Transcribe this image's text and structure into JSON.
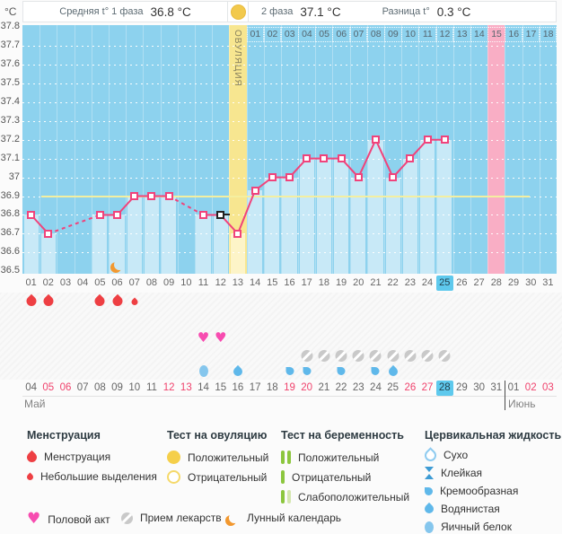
{
  "header": {
    "unit": "°C",
    "avg_phase1_label": "Средняя t° 1 фаза",
    "avg_phase1_value": "36.8 °C",
    "phase2_label": "2 фаза",
    "phase2_value": "37.1 °C",
    "diff_label": "Разница t°",
    "diff_value": "0.3 °C"
  },
  "chart_data": {
    "type": "line",
    "title": "Basal body temperature cycle chart",
    "ylabel": "°C",
    "ylim": [
      36.5,
      37.8
    ],
    "ytick_labels": [
      "37.8",
      "37.7",
      "37.6",
      "37.5",
      "37.4",
      "37.3",
      "37.2",
      "37.1",
      "37",
      "36.9",
      "36.8",
      "36.7",
      "36.6",
      "36.5"
    ],
    "days_in_cycle": 31,
    "day_labels": [
      "01",
      "02",
      "03",
      "04",
      "05",
      "06",
      "07",
      "08",
      "09",
      "10",
      "11",
      "12",
      "13",
      "14",
      "15",
      "16",
      "17",
      "18",
      "19",
      "20",
      "21",
      "22",
      "23",
      "24",
      "25",
      "26",
      "27",
      "28",
      "29",
      "30",
      "31"
    ],
    "points": [
      {
        "day": 1,
        "t": 36.8
      },
      {
        "day": 2,
        "t": 36.7
      },
      {
        "day": 5,
        "t": 36.8
      },
      {
        "day": 6,
        "t": 36.8
      },
      {
        "day": 7,
        "t": 36.9
      },
      {
        "day": 8,
        "t": 36.9
      },
      {
        "day": 9,
        "t": 36.9
      },
      {
        "day": 11,
        "t": 36.8
      },
      {
        "day": 12,
        "t": 36.8,
        "marker": "black"
      },
      {
        "day": 13,
        "t": 36.7
      },
      {
        "day": 14,
        "t": 36.93
      },
      {
        "day": 15,
        "t": 37.0
      },
      {
        "day": 16,
        "t": 37.0
      },
      {
        "day": 17,
        "t": 37.1
      },
      {
        "day": 18,
        "t": 37.1
      },
      {
        "day": 19,
        "t": 37.1
      },
      {
        "day": 20,
        "t": 37.0
      },
      {
        "day": 21,
        "t": 37.2
      },
      {
        "day": 22,
        "t": 37.0
      },
      {
        "day": 23,
        "t": 37.1
      },
      {
        "day": 24,
        "t": 37.2
      },
      {
        "day": 25,
        "t": 37.2
      }
    ],
    "coverline_temp": 36.9,
    "ovulation": {
      "day": 13,
      "label": "ОВУЛЯЦИЯ"
    },
    "expected_period_day": 28,
    "current_day": 25,
    "phase2_numbers": {
      "start_day": 14,
      "labels": [
        "01",
        "02",
        "03",
        "04",
        "05",
        "06",
        "07",
        "08",
        "09",
        "10",
        "11",
        "12",
        "13",
        "14",
        "15",
        "16",
        "17",
        "18"
      ],
      "highlight_label": "15"
    }
  },
  "events": {
    "menstruation_heavy_days": [
      1,
      2,
      5,
      6
    ],
    "menstruation_light_days": [
      7
    ],
    "lunar_days": [
      6
    ],
    "intercourse_days": [
      11,
      12
    ],
    "medication_days": [
      17,
      18,
      19,
      20,
      21,
      22,
      23,
      24,
      25
    ],
    "cervical": [
      {
        "day": 11,
        "type": "eggwhite"
      },
      {
        "day": 13,
        "type": "watery"
      },
      {
        "day": 16,
        "type": "creamy"
      },
      {
        "day": 17,
        "type": "creamy"
      },
      {
        "day": 19,
        "type": "creamy"
      },
      {
        "day": 21,
        "type": "creamy"
      },
      {
        "day": 22,
        "type": "watery"
      }
    ]
  },
  "calendar": {
    "may_label": "Май",
    "june_label": "Июнь",
    "june_start_index": 28,
    "highlight_index": 24,
    "dates": [
      {
        "label": "04",
        "red": false
      },
      {
        "label": "05",
        "red": true
      },
      {
        "label": "06",
        "red": true
      },
      {
        "label": "07",
        "red": false
      },
      {
        "label": "08",
        "red": false
      },
      {
        "label": "09",
        "red": false
      },
      {
        "label": "10",
        "red": false
      },
      {
        "label": "11",
        "red": false
      },
      {
        "label": "12",
        "red": true
      },
      {
        "label": "13",
        "red": true
      },
      {
        "label": "14",
        "red": false
      },
      {
        "label": "15",
        "red": false
      },
      {
        "label": "16",
        "red": false
      },
      {
        "label": "17",
        "red": false
      },
      {
        "label": "18",
        "red": false
      },
      {
        "label": "19",
        "red": true
      },
      {
        "label": "20",
        "red": true
      },
      {
        "label": "21",
        "red": false
      },
      {
        "label": "22",
        "red": false
      },
      {
        "label": "23",
        "red": false
      },
      {
        "label": "24",
        "red": false
      },
      {
        "label": "25",
        "red": false
      },
      {
        "label": "26",
        "red": true
      },
      {
        "label": "27",
        "red": true
      },
      {
        "label": "28",
        "red": false
      },
      {
        "label": "29",
        "red": false
      },
      {
        "label": "30",
        "red": false
      },
      {
        "label": "31",
        "red": false
      },
      {
        "label": "01",
        "red": false
      },
      {
        "label": "02",
        "red": true
      },
      {
        "label": "03",
        "red": true
      }
    ]
  },
  "legend": {
    "sections": [
      {
        "title": "Менструация",
        "items": [
          {
            "icon": "drop-large",
            "label": "Менструация"
          },
          {
            "icon": "drop-small",
            "label": "Небольшие выделения"
          }
        ]
      },
      {
        "title": "Тест на овуляцию",
        "items": [
          {
            "icon": "circle-filled",
            "label": "Положительный"
          },
          {
            "icon": "circle-outline",
            "label": "Отрицательный"
          }
        ]
      },
      {
        "title": "Тест на беременность",
        "items": [
          {
            "icon": "bars-positive",
            "label": "Положительный"
          },
          {
            "icon": "bar-negative",
            "label": "Отрицательный"
          },
          {
            "icon": "bars-weak",
            "label": "Слабоположительный"
          }
        ]
      },
      {
        "title": "Цервикальная жидкость",
        "items": [
          {
            "icon": "drop-outline",
            "label": "Сухо"
          },
          {
            "icon": "hourglass",
            "label": "Клейкая"
          },
          {
            "icon": "comma",
            "label": "Кремообразная"
          },
          {
            "icon": "drop-filled",
            "label": "Водянистая"
          },
          {
            "icon": "oval",
            "label": "Яичный белок"
          }
        ]
      }
    ],
    "footer": [
      {
        "icon": "heart",
        "label": "Половой акт"
      },
      {
        "icon": "pill",
        "label": "Прием лекарств"
      },
      {
        "icon": "moon",
        "label": "Лунный календарь"
      }
    ]
  },
  "glyphs": {
    "heart": "♥"
  },
  "colors": {
    "chart_bg": "#8dd2ee",
    "bar": "#c8e9f7",
    "ovulation_column": "#f7e690",
    "ovulation_bar": "#fdf4c8",
    "expected_period": "#f9aec5",
    "temp_line": "#f0437b",
    "coverline": "#f4efa0",
    "highlight_day": "#5ec9ed",
    "weekend_date": "#f0436d",
    "menstruation": "#ee3f43",
    "intercourse": "#f74cb0",
    "medication": "#c9c9c9",
    "cervical": "#5fb8ea",
    "ovulation_test": "#f5cf4a",
    "pregnancy_test": "#8cc63e",
    "lunar": "#f2982f"
  }
}
